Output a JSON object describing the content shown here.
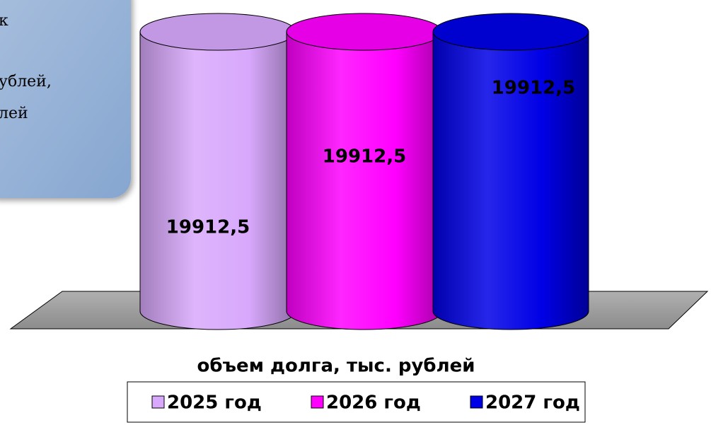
{
  "chart_data": {
    "type": "cylinder",
    "categories": [
      "объем долга, тыс. рублей"
    ],
    "series": [
      {
        "name": "2025 год",
        "color": "#d8a8fc",
        "values": [
          19912.5
        ],
        "value_labels": [
          "19912,5"
        ]
      },
      {
        "name": "2026 год",
        "color": "#ff00ff",
        "values": [
          19912.5
        ],
        "value_labels": [
          "19912,5"
        ]
      },
      {
        "name": "2027 год",
        "color": "#0000e6",
        "values": [
          19912.5
        ],
        "value_labels": [
          "19912,5"
        ]
      }
    ],
    "annotations": [
      "к",
      "ублей,",
      "лей"
    ],
    "legend": "bottom"
  }
}
